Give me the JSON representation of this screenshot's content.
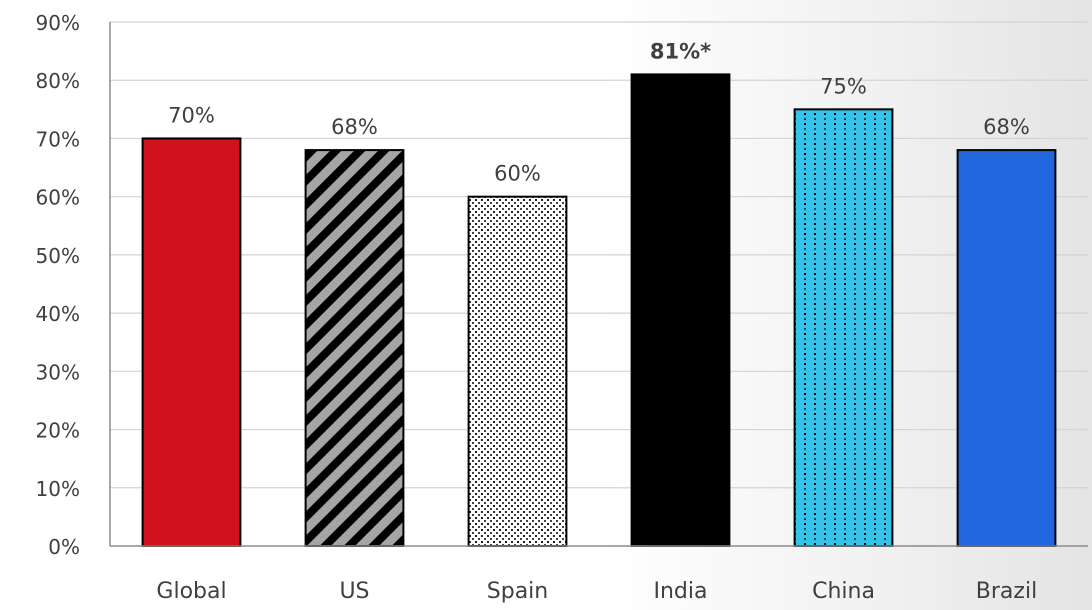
{
  "chart_data": {
    "type": "bar",
    "title": "",
    "xlabel": "",
    "ylabel": "",
    "categories": [
      "Global",
      "US",
      "Spain",
      "India",
      "China",
      "Brazil"
    ],
    "values": [
      70,
      68,
      60,
      81,
      75,
      68
    ],
    "data_labels": [
      "70%",
      "68%",
      "60%",
      "81%*",
      "75%",
      "68%"
    ],
    "highlighted_label": "81%*",
    "ylim": [
      0,
      90
    ],
    "yticks": [
      0,
      10,
      20,
      30,
      40,
      50,
      60,
      70,
      80,
      90
    ],
    "ytick_labels": [
      "0%",
      "10%",
      "20%",
      "30%",
      "40%",
      "50%",
      "60%",
      "70%",
      "80%",
      "90%"
    ],
    "grid": true,
    "legend": "none",
    "bar_styles": [
      {
        "fill": "#d0121e",
        "pattern": "solid"
      },
      {
        "fill": "#a5a5a5",
        "pattern": "diagonal-stripes",
        "pattern_color": "#000000"
      },
      {
        "fill": "#ffffff",
        "pattern": "dots",
        "pattern_color": "#222222"
      },
      {
        "fill": "#000000",
        "pattern": "solid"
      },
      {
        "fill": "#36c3ea",
        "pattern": "dots",
        "pattern_color": "#000000"
      },
      {
        "fill": "#2266dd",
        "pattern": "solid"
      }
    ]
  }
}
